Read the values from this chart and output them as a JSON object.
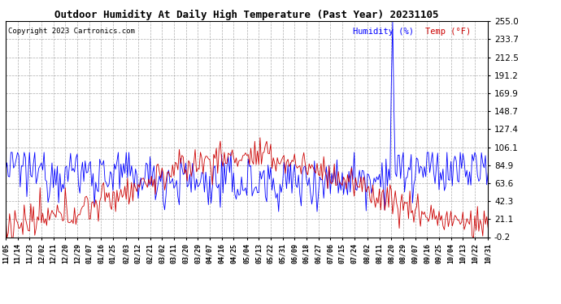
{
  "title": "Outdoor Humidity At Daily High Temperature (Past Year) 20231105",
  "copyright": "Copyright 2023 Cartronics.com",
  "legend_humidity": "Humidity (%)",
  "legend_temp": "Temp (°F)",
  "humidity_color": "#0000ff",
  "temp_color": "#cc0000",
  "background_color": "#ffffff",
  "grid_color": "#aaaaaa",
  "yticks": [
    -0.2,
    21.1,
    42.3,
    63.6,
    84.9,
    106.1,
    127.4,
    148.7,
    169.9,
    191.2,
    212.5,
    233.7,
    255.0
  ],
  "ymin": -0.2,
  "ymax": 255.0,
  "x_labels": [
    "11/05",
    "11/14",
    "11/23",
    "12/02",
    "12/11",
    "12/20",
    "12/29",
    "01/07",
    "01/16",
    "01/25",
    "02/03",
    "02/12",
    "02/21",
    "03/02",
    "03/11",
    "03/20",
    "03/29",
    "04/07",
    "04/16",
    "04/25",
    "05/04",
    "05/13",
    "05/22",
    "05/31",
    "06/09",
    "06/18",
    "06/27",
    "07/06",
    "07/15",
    "07/24",
    "08/02",
    "08/11",
    "08/20",
    "08/29",
    "09/07",
    "09/16",
    "09/25",
    "10/04",
    "10/13",
    "10/22",
    "10/31"
  ]
}
